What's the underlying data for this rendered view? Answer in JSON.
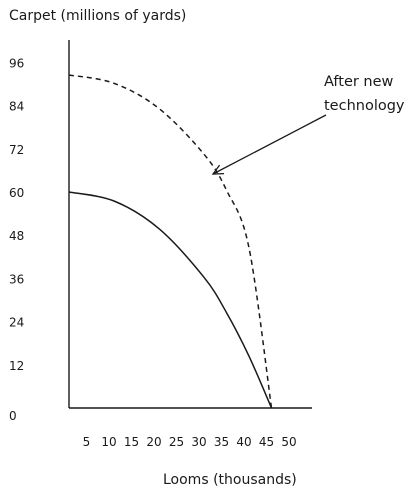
{
  "chart_data": {
    "type": "line",
    "title": "",
    "ylabel": "Carpet (millions of yards)",
    "xlabel": "Looms (thousands)",
    "x_ticks": [
      5,
      10,
      15,
      20,
      25,
      30,
      35,
      40,
      45,
      50
    ],
    "y_ticks": [
      0,
      12,
      24,
      36,
      48,
      60,
      72,
      84,
      96
    ],
    "xlim": [
      0,
      52
    ],
    "ylim": [
      0,
      96
    ],
    "grid": false,
    "series": [
      {
        "line_style": "solid",
        "color": "#1a1a1a",
        "x": [
          0,
          10,
          20,
          30,
          35,
          40,
          45
        ],
        "y": [
          60,
          57.5,
          49.8,
          36.3,
          26.5,
          14.4,
          0
        ]
      },
      {
        "line_style": "dashed",
        "color": "#1a1a1a",
        "x": [
          0,
          10,
          20,
          30,
          35,
          40,
          45
        ],
        "y": [
          92.5,
          90.2,
          83.2,
          70.5,
          60.5,
          44.5,
          0
        ]
      }
    ],
    "annotations": [
      {
        "text_lines": [
          "After new",
          "technology"
        ],
        "points_to_series": 1,
        "arrow_target": {
          "x": 32,
          "y": 65
        }
      }
    ]
  }
}
